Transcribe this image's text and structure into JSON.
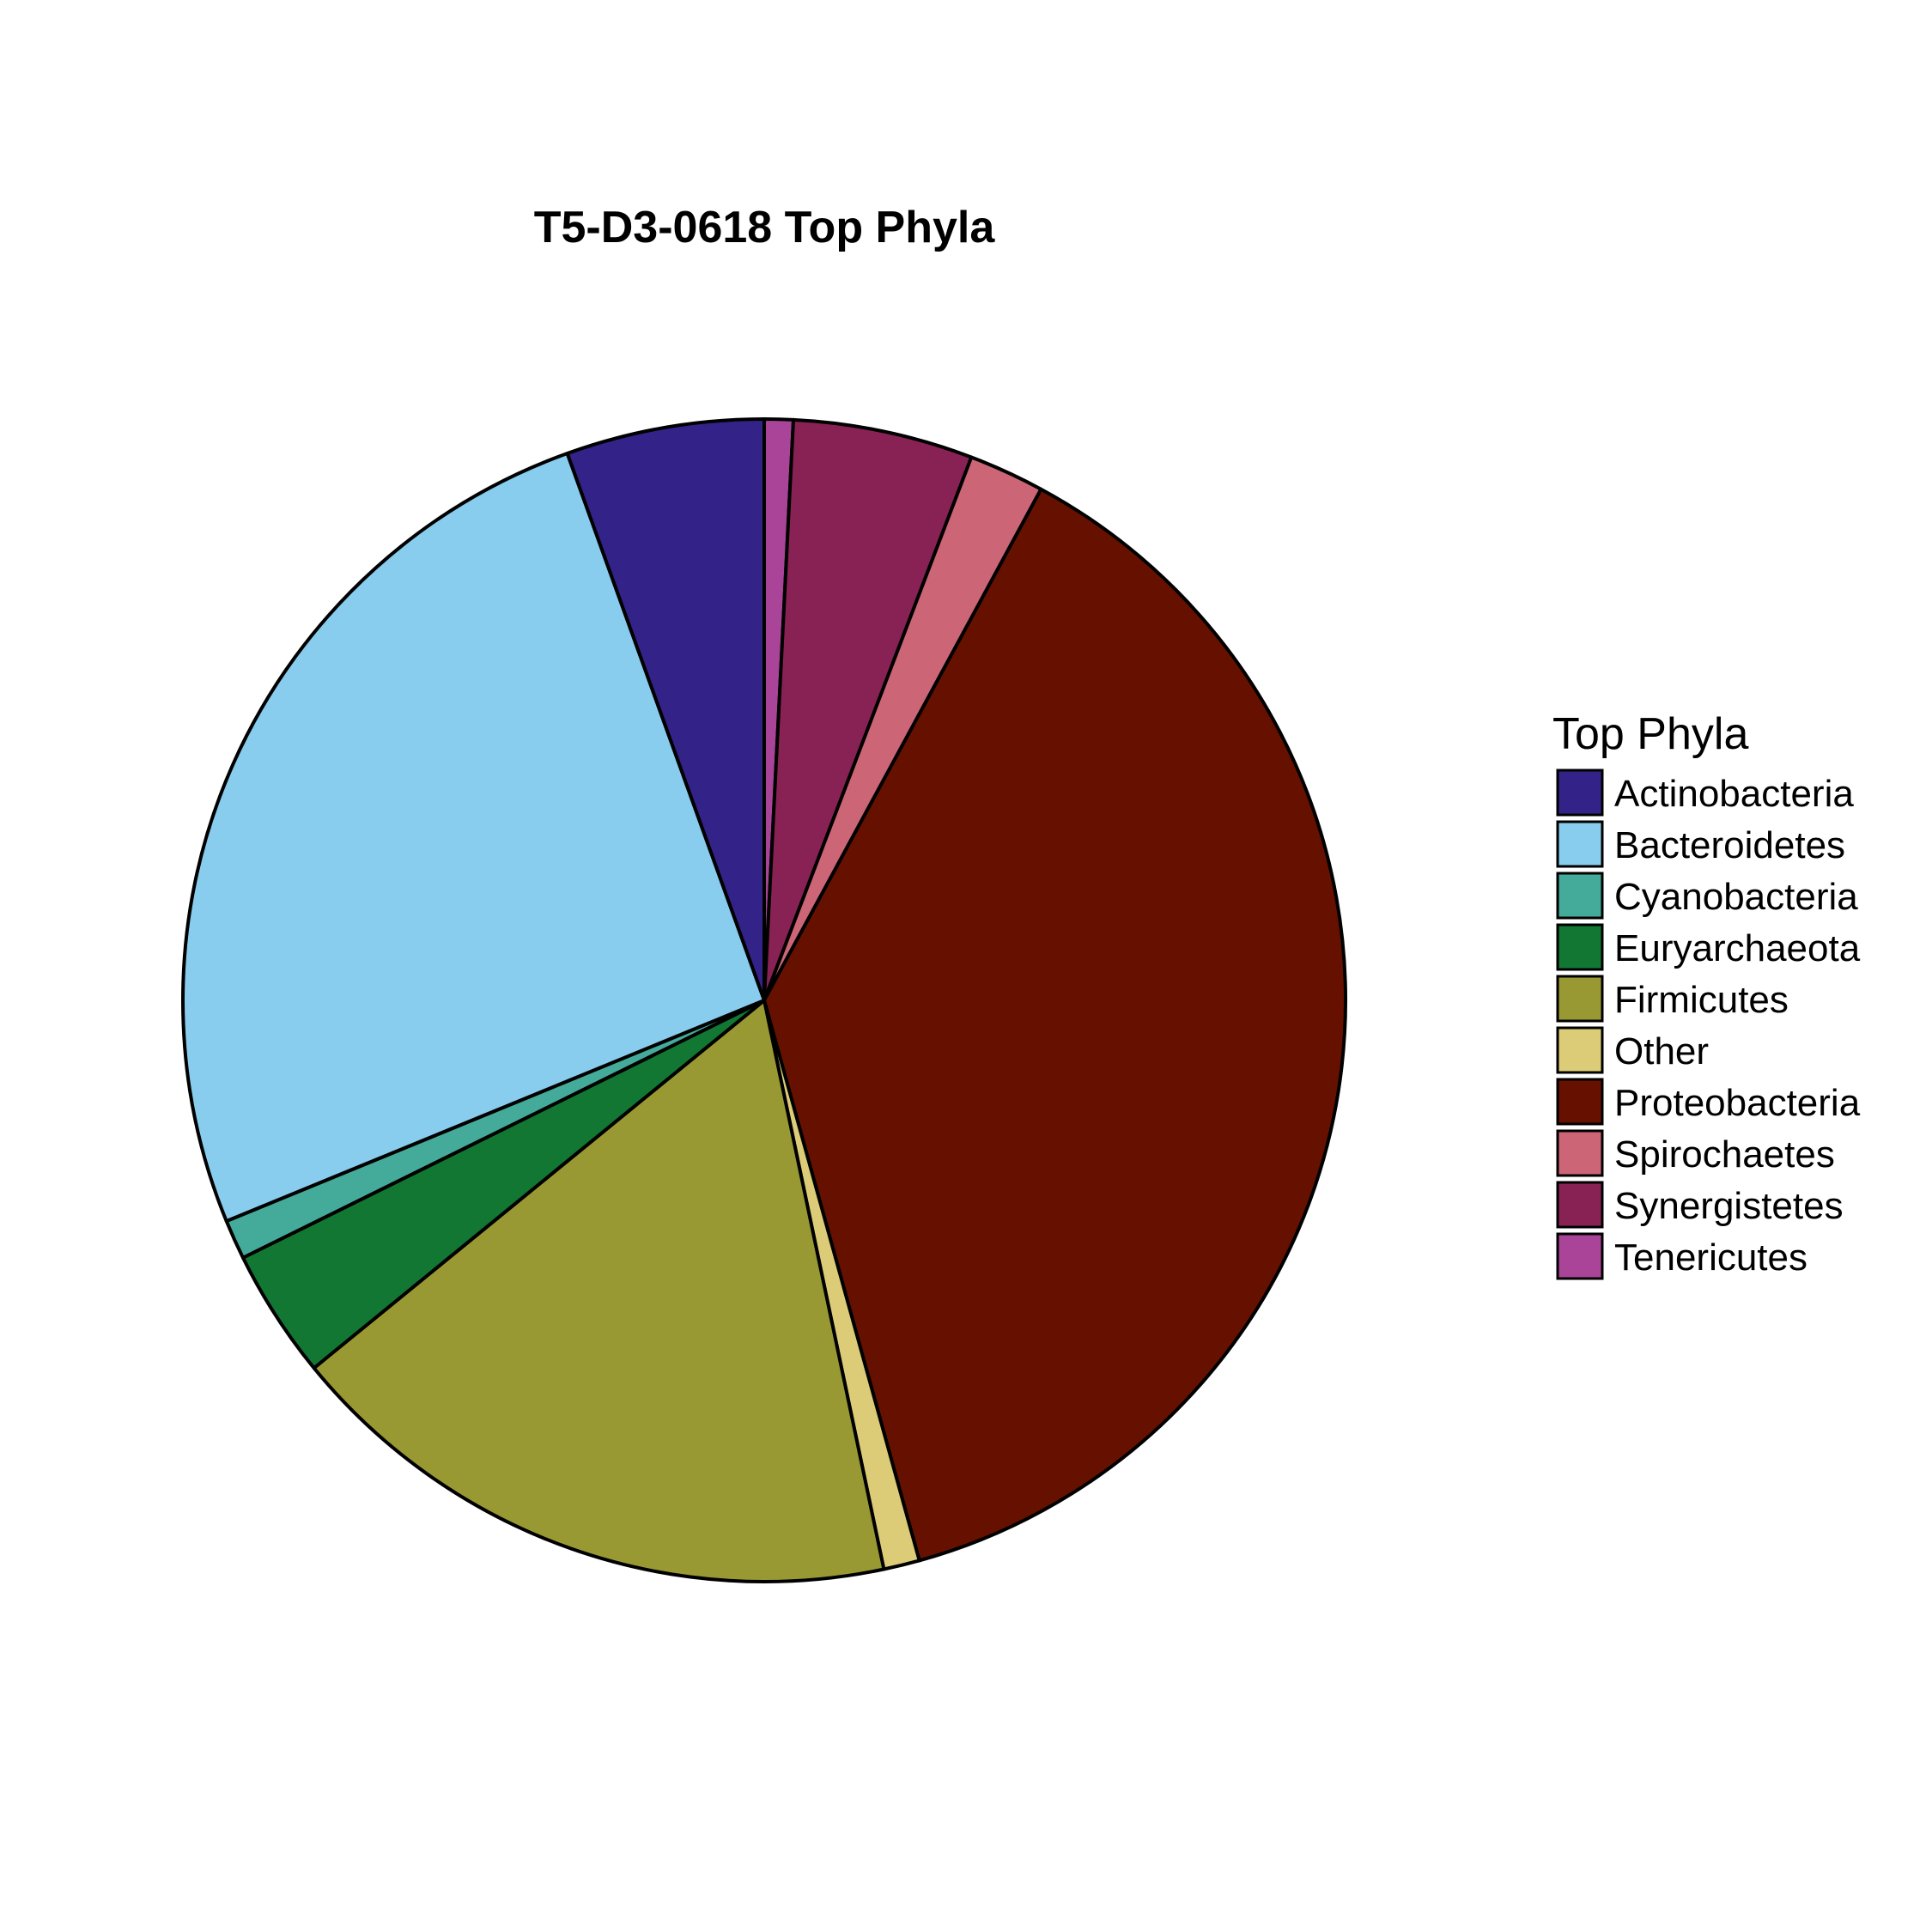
{
  "chart_data": {
    "type": "pie",
    "title": "T5-D3-0618 Top Phyla",
    "legend_title": "Top Phyla",
    "legend_position": "right",
    "slices": [
      {
        "label": "Actinobacteria",
        "value": 5.5,
        "color": "#332288"
      },
      {
        "label": "Bacteroidetes",
        "value": 25.7,
        "color": "#88CCEE"
      },
      {
        "label": "Cyanobacteria",
        "value": 1.1,
        "color": "#44AA99"
      },
      {
        "label": "Euryarchaeota",
        "value": 3.6,
        "color": "#117733"
      },
      {
        "label": "Firmicutes",
        "value": 17.4,
        "color": "#999933"
      },
      {
        "label": "Other",
        "value": 1.0,
        "color": "#DDCC77"
      },
      {
        "label": "Proteobacteria",
        "value": 37.8,
        "color": "#661100"
      },
      {
        "label": "Spirochaetes",
        "value": 2.1,
        "color": "#CC6677"
      },
      {
        "label": "Synergistetes",
        "value": 5.0,
        "color": "#882255"
      },
      {
        "label": "Tenericutes",
        "value": 0.8,
        "color": "#AA4499"
      }
    ]
  }
}
